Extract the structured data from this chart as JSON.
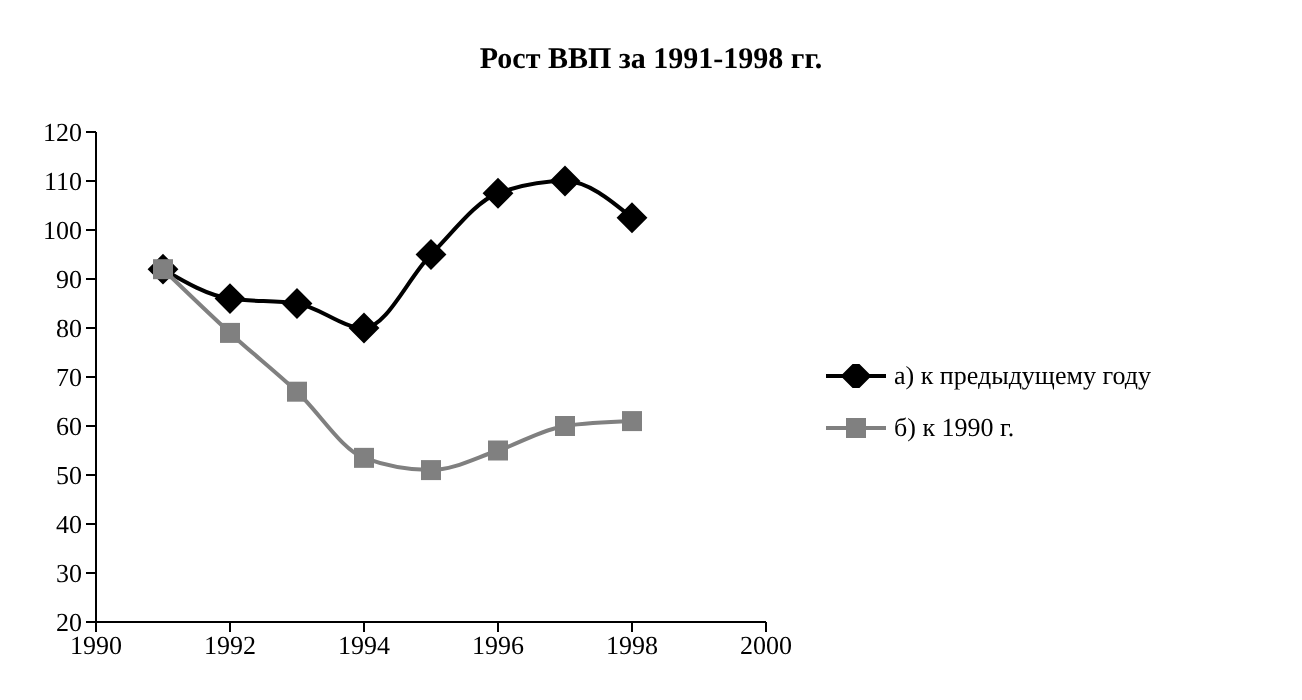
{
  "chart_data": {
    "type": "line",
    "title": "Рост ВВП за 1991-1998 гг.",
    "x": [
      1991,
      1992,
      1993,
      1994,
      1995,
      1996,
      1997,
      1998
    ],
    "series": [
      {
        "name": "а) к предыдущему году",
        "color": "#000000",
        "marker": "diamond",
        "values": [
          92,
          86,
          85,
          80,
          95,
          107.5,
          110,
          102.5
        ]
      },
      {
        "name": "б) к 1990 г.",
        "color": "#808080",
        "marker": "square",
        "values": [
          92,
          79,
          67,
          53.5,
          51,
          55,
          60,
          61
        ]
      }
    ],
    "xlim": [
      1990,
      2000
    ],
    "xticks": [
      1990,
      1992,
      1994,
      1996,
      1998,
      2000
    ],
    "ylim": [
      20,
      120
    ],
    "yticks": [
      20,
      30,
      40,
      50,
      60,
      70,
      80,
      90,
      100,
      110,
      120
    ],
    "grid": false,
    "legend": "right"
  }
}
